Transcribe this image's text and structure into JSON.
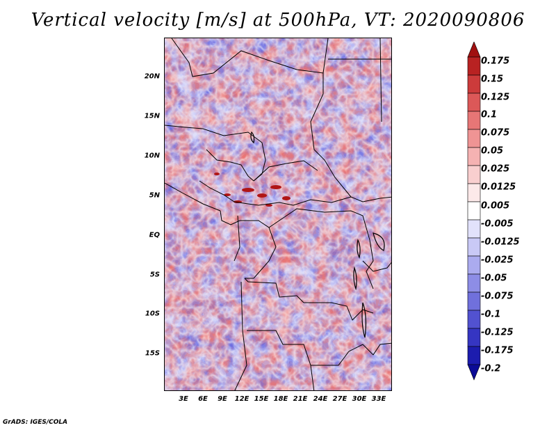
{
  "title": "Vertical velocity [m/s] at 500hPa, VT: 2020090806",
  "footer": "GrADS: IGES/COLA",
  "map": {
    "lat_labels": [
      "20N",
      "15N",
      "10N",
      "5N",
      "EQ",
      "5S",
      "10S",
      "15S"
    ],
    "lon_labels": [
      "3E",
      "6E",
      "9E",
      "12E",
      "15E",
      "18E",
      "21E",
      "24E",
      "27E",
      "30E",
      "33E"
    ]
  },
  "colorbar": {
    "labels": [
      "0.175",
      "0.15",
      "0.125",
      "0.1",
      "0.075",
      "0.05",
      "0.025",
      "0.0125",
      "0.005",
      "-0.005",
      "-0.0125",
      "-0.025",
      "-0.05",
      "-0.075",
      "-0.1",
      "-0.125",
      "-0.175",
      "-0.2"
    ],
    "colors": [
      "#a01010",
      "#b82222",
      "#cc3b3b",
      "#dc5858",
      "#e77676",
      "#ef9494",
      "#f5b2b2",
      "#f9cfcf",
      "#fce9e9",
      "#ffffff",
      "#e2e2fb",
      "#c9c9f6",
      "#ababef",
      "#8d8de6",
      "#7070dc",
      "#5252d0",
      "#3535c2",
      "#1c1cae",
      "#0b0b96"
    ]
  },
  "colors": {
    "positive": "#e36a6a",
    "negative": "#6f6fe0",
    "outline": "#000000"
  }
}
